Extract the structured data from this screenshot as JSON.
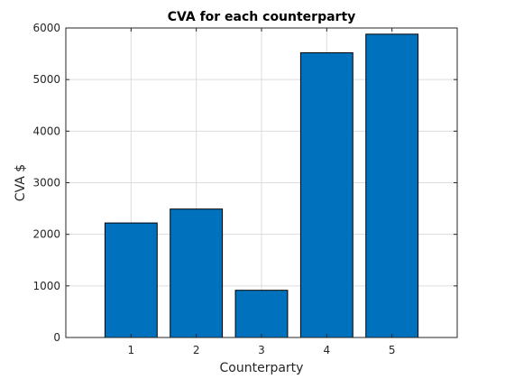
{
  "chart_data": {
    "type": "bar",
    "title": "CVA for each counterparty",
    "xlabel": "Counterparty",
    "ylabel": "CVA $",
    "categories": [
      "1",
      "2",
      "3",
      "4",
      "5"
    ],
    "values": [
      2220,
      2490,
      915,
      5520,
      5880
    ],
    "xlim": [
      0,
      6
    ],
    "ylim": [
      0,
      6000
    ],
    "yticks": [
      0,
      1000,
      2000,
      3000,
      4000,
      5000,
      6000
    ],
    "grid": true,
    "legend": "none",
    "bar_color": "#0072BD"
  }
}
